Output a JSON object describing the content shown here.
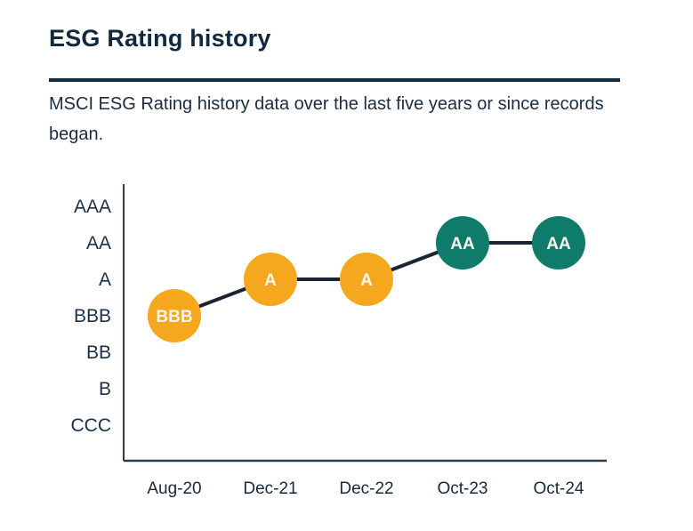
{
  "header": {
    "title": "ESG Rating history",
    "subtitle": "MSCI ESG Rating history data over the last five years or since records began."
  },
  "colors": {
    "title_navy": "#11293E",
    "divider_navy": "#132B41",
    "axis": "#2A3D50",
    "connector": "#1A2433",
    "amber": "#F5A71D",
    "teal": "#0F7C6B",
    "point_label_text": "#FBF6EC"
  },
  "chart_data": {
    "type": "line",
    "title": "ESG Rating history",
    "x_categories": [
      "Aug-20",
      "Dec-21",
      "Dec-22",
      "Oct-23",
      "Oct-24"
    ],
    "y_categories_top_to_bottom": [
      "AAA",
      "AA",
      "A",
      "BBB",
      "BB",
      "B",
      "CCC"
    ],
    "grid": "off",
    "legend": "none",
    "series": [
      {
        "name": "MSCI ESG Rating",
        "points": [
          {
            "x": "Aug-20",
            "rating": "BBB",
            "color_key": "amber"
          },
          {
            "x": "Dec-21",
            "rating": "A",
            "color_key": "amber"
          },
          {
            "x": "Dec-22",
            "rating": "A",
            "color_key": "amber"
          },
          {
            "x": "Oct-23",
            "rating": "AA",
            "color_key": "teal"
          },
          {
            "x": "Oct-24",
            "rating": "AA",
            "color_key": "teal"
          }
        ]
      }
    ]
  }
}
